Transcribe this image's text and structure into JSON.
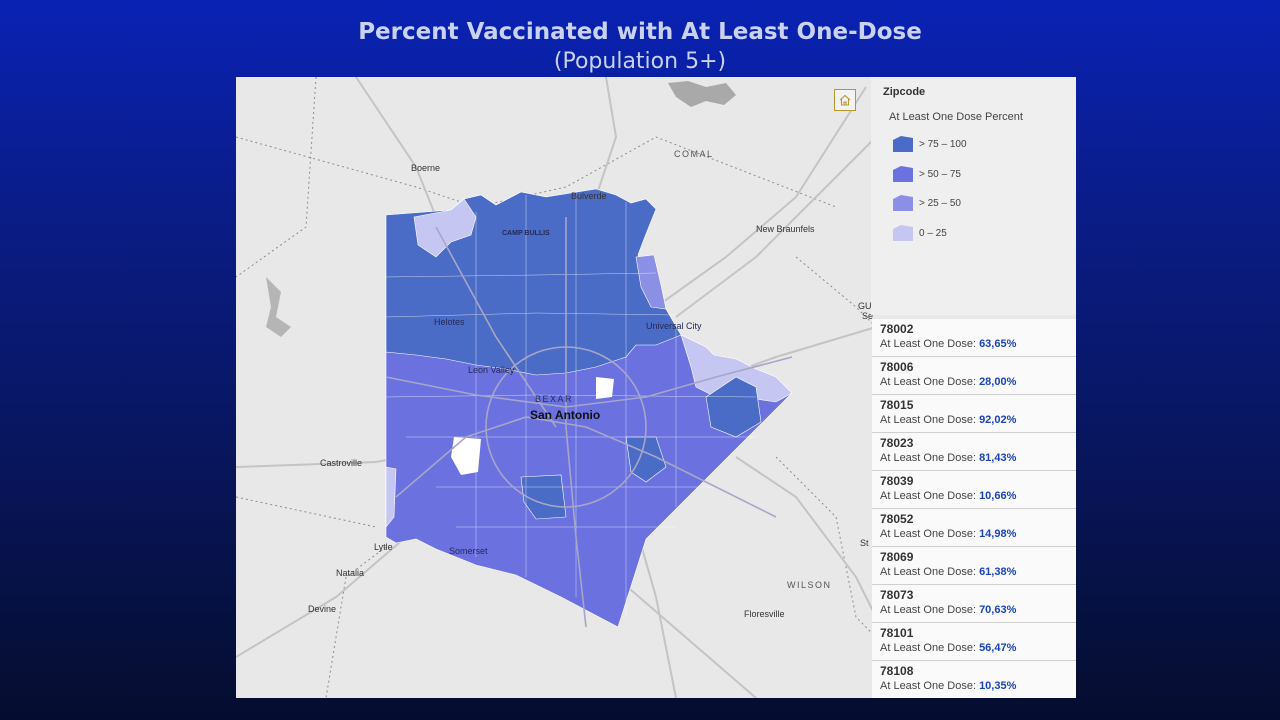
{
  "title": {
    "line1": "Percent Vaccinated with At Least One-Dose",
    "line2": "(Population 5+)"
  },
  "legend": {
    "layer": "Zipcode",
    "field": "At Least One Dose Percent",
    "classes": [
      {
        "label": "> 75 – 100",
        "color": "#4a6cc6"
      },
      {
        "label": "> 50 – 75",
        "color": "#6b72e0"
      },
      {
        "label": "> 25 – 50",
        "color": "#8b8fe6"
      },
      {
        "label": "0 – 25",
        "color": "#c6c6f2"
      }
    ]
  },
  "list": {
    "metric_label": "At Least One Dose: ",
    "items": [
      {
        "zip": "78002",
        "value": "63,65%"
      },
      {
        "zip": "78006",
        "value": "28,00%"
      },
      {
        "zip": "78015",
        "value": "92,02%"
      },
      {
        "zip": "78023",
        "value": "81,43%"
      },
      {
        "zip": "78039",
        "value": "10,66%"
      },
      {
        "zip": "78052",
        "value": "14,98%"
      },
      {
        "zip": "78069",
        "value": "61,38%"
      },
      {
        "zip": "78073",
        "value": "70,63%"
      },
      {
        "zip": "78101",
        "value": "56,47%"
      },
      {
        "zip": "78108",
        "value": "10,35%"
      }
    ]
  },
  "map_labels": {
    "comal": "COMAL",
    "boerne": "Boerne",
    "bulverde": "Bulverde",
    "new_braunfels": "New Braunfels",
    "camp_bullis": "CAMP BULLIS",
    "helotes": "Helotes",
    "universal_city": "Universal City",
    "leon_valley": "Leon Valley",
    "bexar": "BEXAR",
    "san_antonio": "San Antonio",
    "castroville": "Castroville",
    "lytle": "Lytle",
    "natalia": "Natalia",
    "somerset": "Somerset",
    "devine": "Devine",
    "wilson": "WILSON",
    "floresville": "Floresville",
    "gu_partial": "GU",
    "se_partial": "Se",
    "st_partial": "St"
  },
  "icons": {
    "home": "home-icon"
  }
}
